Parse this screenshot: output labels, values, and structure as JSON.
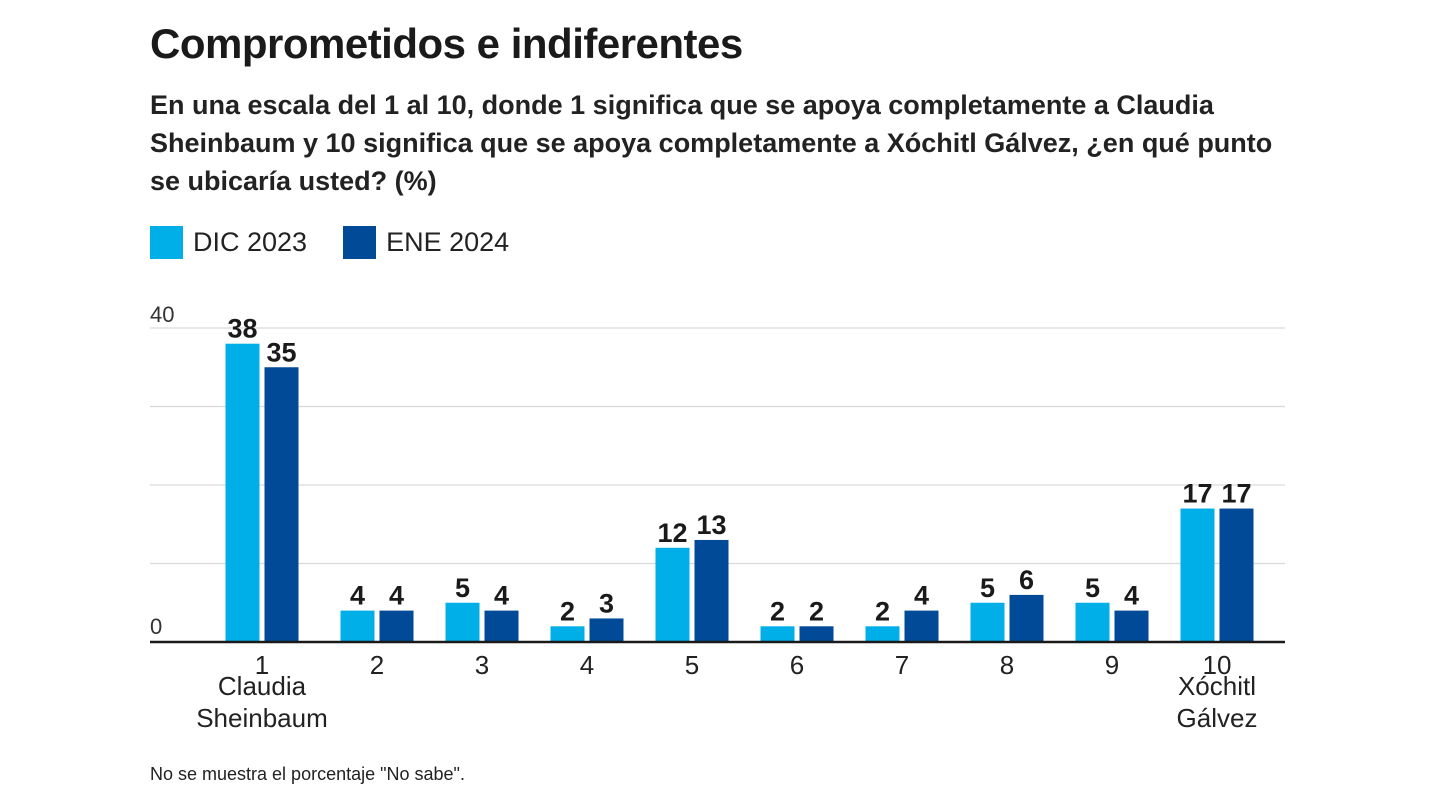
{
  "title": "Comprometidos e indiferentes",
  "subtitle": "En una escala del 1 al 10, donde 1 significa que se apoya completamente a Claudia Sheinbaum y 10 significa que se apoya completamente a Xóchitl Gálvez, ¿en qué punto se ubicaría usted?  (%)",
  "note": "No se muestra el porcentaje \"No sabe\".",
  "colors": {
    "dic_2023": "#00aee8",
    "ene_2024": "#004a97",
    "grid": "#d9d9d9",
    "axis": "#1a1a1a"
  },
  "legend": [
    {
      "label": "DIC 2023",
      "color": "#00aee8"
    },
    {
      "label": "ENE 2024",
      "color": "#004a97"
    }
  ],
  "chart_data": {
    "type": "bar",
    "title": "Comprometidos e indiferentes",
    "categories": [
      "1",
      "2",
      "3",
      "4",
      "5",
      "6",
      "7",
      "8",
      "9",
      "10"
    ],
    "category_sublabels": {
      "1": "Claudia\nSheinbaum",
      "10": "Xóchitl\nGálvez"
    },
    "series": [
      {
        "name": "DIC 2023",
        "values": [
          38,
          4,
          5,
          2,
          12,
          2,
          2,
          5,
          5,
          17
        ]
      },
      {
        "name": "ENE 2024",
        "values": [
          35,
          4,
          4,
          3,
          13,
          2,
          4,
          6,
          4,
          17
        ]
      }
    ],
    "ylim": [
      0,
      40
    ],
    "y_tick_labels": [
      "0",
      "40"
    ],
    "gridlines": [
      10,
      20,
      30,
      40
    ],
    "grid": true,
    "legend_position": "top-left",
    "data_labels": true
  }
}
